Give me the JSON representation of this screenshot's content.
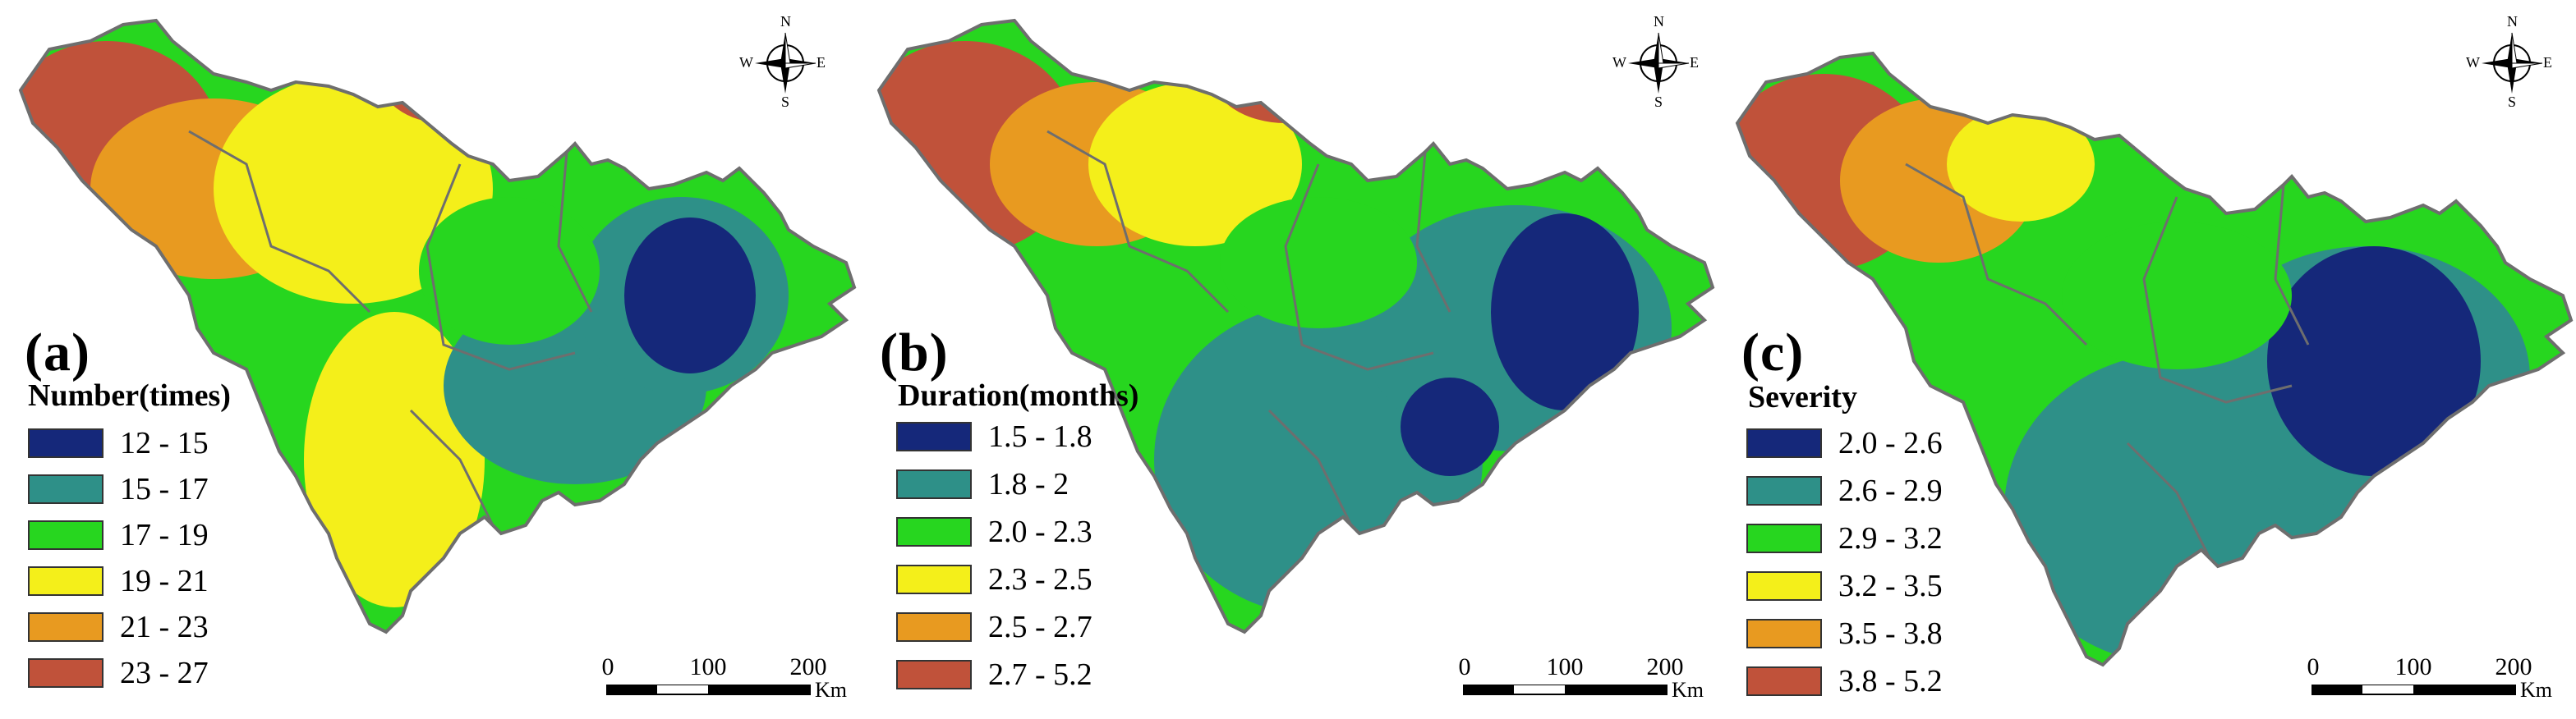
{
  "colors": {
    "c1": "#15287a",
    "c2": "#2e9088",
    "c3": "#27d61f",
    "c4": "#f4ef1a",
    "c5": "#e89a20",
    "c6": "#c0523a",
    "boundary": "#6e6e6e"
  },
  "panels": [
    {
      "label": "(a)",
      "legend_title": "Number(times)",
      "classes": [
        "12 - 15",
        "15 - 17",
        "17 - 19",
        "19 - 21",
        "21 - 23",
        "23 - 27"
      ]
    },
    {
      "label": "(b)",
      "legend_title": "Duration(months)",
      "classes": [
        "1.5 - 1.8",
        "1.8 - 2",
        "2.0 - 2.3",
        "2.3 - 2.5",
        "2.5 - 2.7",
        "2.7 - 5.2"
      ]
    },
    {
      "label": "(c)",
      "legend_title": "Severity",
      "classes": [
        "2.0 - 2.6",
        "2.6 - 2.9",
        "2.9 - 3.2",
        "3.2 - 3.5",
        "3.5 - 3.8",
        "3.8 - 5.2"
      ]
    }
  ],
  "north_arrow": {
    "n": "N",
    "s": "S",
    "e": "E",
    "w": "W"
  },
  "scale_bar": {
    "ticks": [
      "0",
      "100",
      "200"
    ],
    "unit": "Km"
  }
}
